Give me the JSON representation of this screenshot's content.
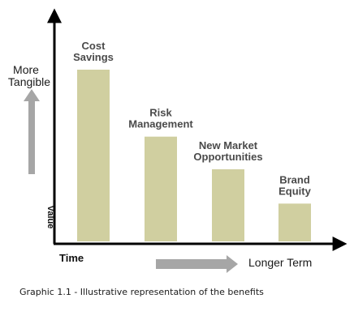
{
  "chart_data": {
    "type": "bar",
    "categories": [
      "Cost Savings",
      "Risk Management",
      "New Market Opportunities",
      "Brand Equity"
    ],
    "category_lines": [
      [
        "Cost",
        "Savings"
      ],
      [
        "Risk",
        "Management"
      ],
      [
        "New Market",
        "Opportunities"
      ],
      [
        "Brand",
        "Equity"
      ]
    ],
    "values": [
      100,
      61,
      42,
      22
    ],
    "ylim": [
      0,
      100
    ],
    "grid": false,
    "y_axis_label_lines": [
      "More",
      "Tangible"
    ],
    "y_axis_vertical_text": "Value",
    "x_axis_start_label": "Time",
    "x_axis_end_label": "Longer Term",
    "bar_color": "#d0cfa0",
    "arrow_color": "#a6a6a6",
    "axis_color": "#000000"
  },
  "caption": "Graphic 1.1 - Illustrative representation of the benefits"
}
